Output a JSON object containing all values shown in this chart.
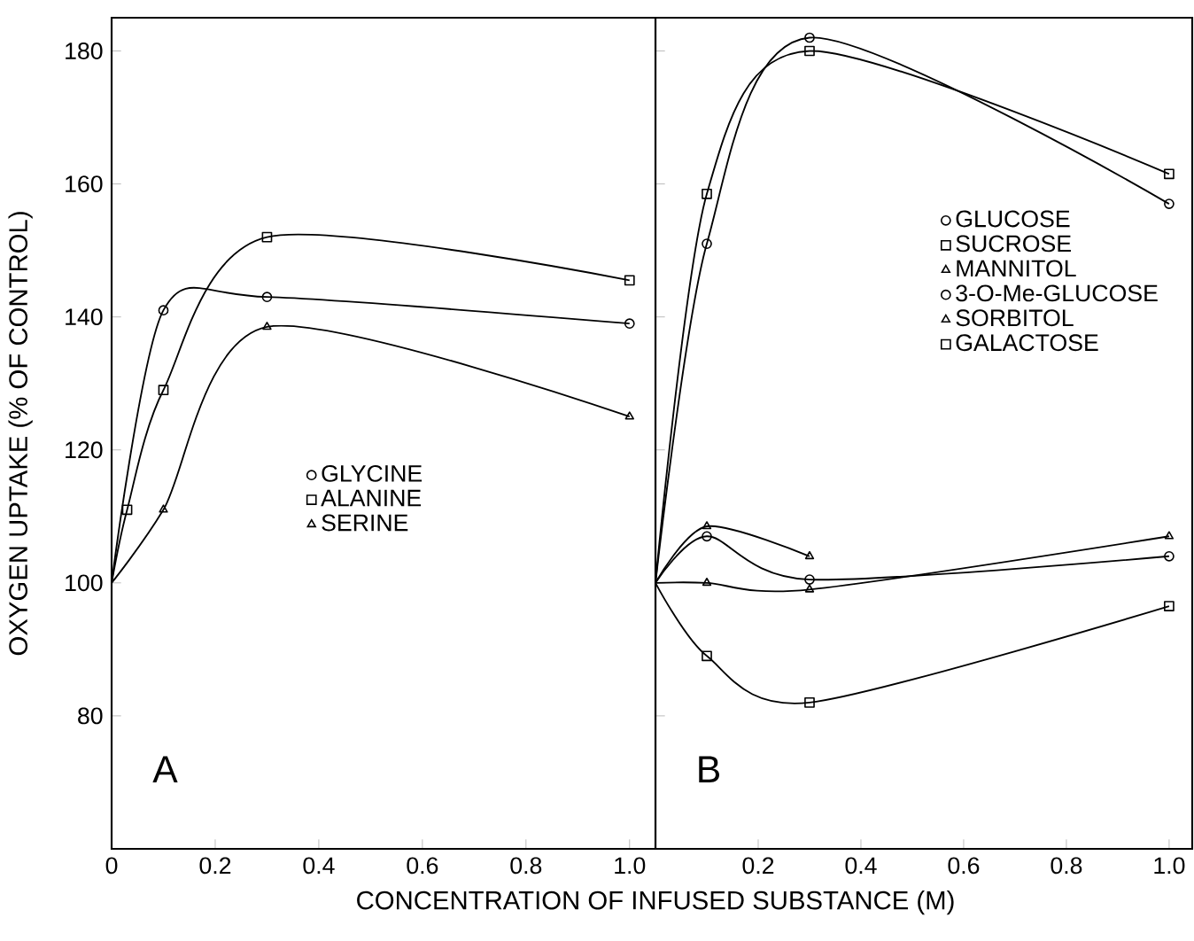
{
  "chart_data": [
    {
      "type": "line",
      "xlabel": "CONCENTRATION OF INFUSED SUBSTANCE (M)",
      "ylabel": "OXYGEN UPTAKE (% OF CONTROL)",
      "annotations": [
        "A"
      ],
      "xlim": [
        0,
        1.05
      ],
      "ylim": [
        60,
        185
      ],
      "xticks": [
        0,
        0.2,
        0.4,
        0.6,
        0.8,
        {
          "value": 1,
          "label": "1.0"
        }
      ],
      "yticks": [
        80,
        100,
        120,
        140,
        160,
        180
      ],
      "legend": "center",
      "grid": false,
      "series": [
        {
          "name": "GLYCINE",
          "color": "#000000",
          "marker": "circle",
          "x": [
            0,
            0.1,
            0.3,
            1.0
          ],
          "values": [
            100,
            141,
            143,
            139
          ]
        },
        {
          "name": "ALANINE",
          "color": "#000000",
          "marker": "square",
          "x": [
            0,
            0.03,
            0.1,
            0.3,
            1.0
          ],
          "values": [
            100,
            111,
            129,
            152,
            145.5
          ]
        },
        {
          "name": "SERINE",
          "color": "#000000",
          "marker": "triangle",
          "x": [
            0,
            0.1,
            0.3,
            1.0
          ],
          "values": [
            100,
            111,
            138.5,
            125
          ]
        }
      ]
    },
    {
      "type": "line",
      "annotations": [
        "B"
      ],
      "tick_labels": "x",
      "xlim": [
        0,
        1.045
      ],
      "ylim": [
        60,
        185
      ],
      "xticks": [
        0.2,
        0.4,
        0.6,
        0.8,
        {
          "value": 1,
          "label": "1.0"
        }
      ],
      "yticks": [
        80,
        100,
        120,
        140,
        160,
        180
      ],
      "legend": "top right",
      "grid": false,
      "series": [
        {
          "name": "GLUCOSE",
          "color": "#000000",
          "marker": "circle",
          "x": [
            0,
            0.1,
            0.3,
            1.0
          ],
          "values": [
            100,
            151,
            182,
            157
          ]
        },
        {
          "name": "SUCROSE",
          "color": "#000000",
          "marker": "square",
          "x": [
            0,
            0.1,
            0.3,
            1.0
          ],
          "values": [
            100,
            158.5,
            180,
            161.5
          ]
        },
        {
          "name": "MANNITOL",
          "color": "#000000",
          "marker": "triangle",
          "x": [
            0,
            0.1,
            0.3
          ],
          "values": [
            100,
            108.5,
            104
          ]
        },
        {
          "name": "3-O-Me-GLUCOSE",
          "color": "#000000",
          "marker": "circle",
          "x": [
            0,
            0.1,
            0.3,
            1.0
          ],
          "values": [
            100,
            107,
            100.5,
            104
          ]
        },
        {
          "name": "SORBITOL",
          "color": "#000000",
          "marker": "triangle",
          "x": [
            0,
            0.1,
            0.3,
            1.0
          ],
          "values": [
            100,
            100,
            99,
            107
          ]
        },
        {
          "name": "GALACTOSE",
          "color": "#000000",
          "marker": "square",
          "x": [
            0,
            0.1,
            0.3,
            1.0
          ],
          "values": [
            100,
            89,
            82,
            96.5
          ]
        }
      ]
    }
  ]
}
